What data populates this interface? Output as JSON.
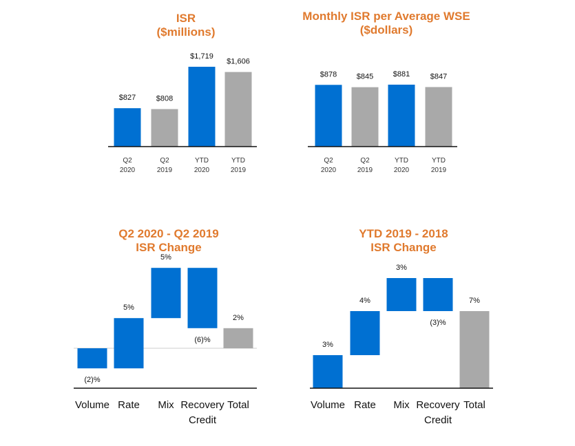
{
  "chart_data": [
    {
      "type": "bar",
      "title": [
        "ISR",
        "($millions)"
      ],
      "categories": [
        [
          "Q2",
          "2020"
        ],
        [
          "Q2",
          "2019"
        ],
        [
          "YTD",
          "2020"
        ],
        [
          "YTD",
          "2019"
        ]
      ],
      "values": [
        827,
        808,
        1719,
        1606
      ],
      "value_labels": [
        "$827",
        "$808",
        "$1,719",
        "$1,606"
      ],
      "colors": [
        "#0070D2",
        "#A9A9A9",
        "#0070D2",
        "#A9A9A9"
      ],
      "ylim": [
        0,
        1850
      ]
    },
    {
      "type": "bar",
      "title": [
        "Monthly ISR per Average WSE",
        "($dollars)"
      ],
      "categories": [
        [
          "Q2",
          "2020"
        ],
        [
          "Q2",
          "2019"
        ],
        [
          "YTD",
          "2020"
        ],
        [
          "YTD",
          "2019"
        ]
      ],
      "values": [
        878,
        845,
        881,
        847
      ],
      "value_labels": [
        "$878",
        "$845",
        "$881",
        "$847"
      ],
      "colors": [
        "#0070D2",
        "#A9A9A9",
        "#0070D2",
        "#A9A9A9"
      ],
      "ylim": [
        0,
        1230
      ]
    },
    {
      "type": "waterfall",
      "title": [
        "Q2 2020 - Q2 2019",
        "ISR Change"
      ],
      "categories": [
        [
          "Volume"
        ],
        [
          "Rate"
        ],
        [
          "Mix"
        ],
        [
          "Recovery",
          "Credit"
        ],
        [
          "Total"
        ]
      ],
      "values": [
        -2,
        5,
        5,
        -6,
        2
      ],
      "value_labels": [
        "(2)%",
        "5%",
        "5%",
        "(6)%",
        "2%"
      ],
      "colors": [
        "#0070D2",
        "#0070D2",
        "#0070D2",
        "#0070D2",
        "#A9A9A9"
      ],
      "ylim": [
        -4,
        8
      ]
    },
    {
      "type": "waterfall",
      "title": [
        "YTD 2019 -  2018",
        "ISR Change"
      ],
      "categories": [
        [
          "Volume"
        ],
        [
          "Rate"
        ],
        [
          "Mix"
        ],
        [
          "Recovery",
          "Credit"
        ],
        [
          "Total"
        ]
      ],
      "values": [
        3,
        4,
        3,
        -3,
        7
      ],
      "value_labels": [
        "3%",
        "4%",
        "3%",
        "(3)%",
        "7%"
      ],
      "colors": [
        "#0070D2",
        "#0070D2",
        "#0070D2",
        "#0070D2",
        "#A9A9A9"
      ],
      "ylim": [
        0,
        11
      ]
    }
  ]
}
